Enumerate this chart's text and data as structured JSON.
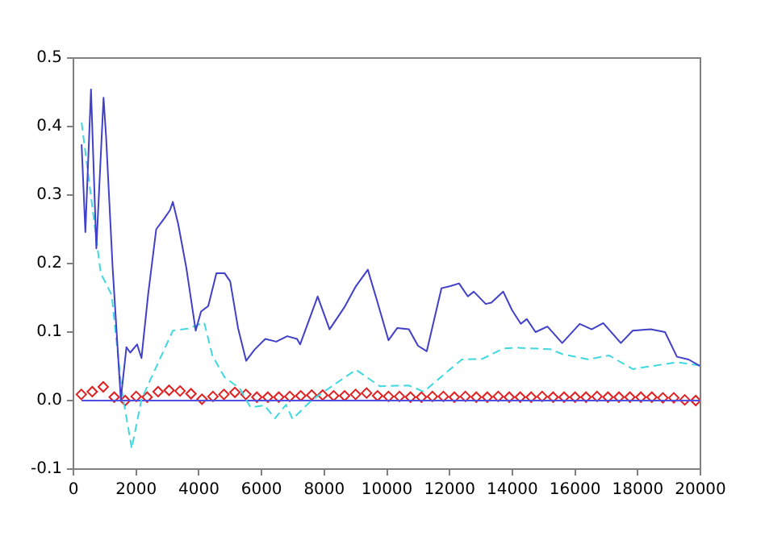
{
  "chart_data": {
    "type": "line",
    "xlim": [
      0,
      20000
    ],
    "xticks": [
      0,
      2000,
      4000,
      6000,
      8000,
      10000,
      12000,
      14000,
      16000,
      18000,
      20000
    ],
    "ylim": [
      -0.1,
      0.5
    ],
    "yticks": [
      -0.1,
      {
        "value": 0,
        "label": "0.0"
      },
      0.1,
      0.2,
      0.3,
      0.4,
      0.5
    ],
    "grid": false,
    "legend": false,
    "series": [
      {
        "color": "#4040c8",
        "marker": "none",
        "line_style": "solid",
        "x": [
          260,
          380,
          560,
          730,
          960,
          1040,
          1250,
          1510,
          1690,
          1810,
          2030,
          2170,
          2380,
          2640,
          2900,
          3080,
          3170,
          3340,
          3600,
          3900,
          4070,
          4300,
          4560,
          4820,
          5000,
          5250,
          5510,
          5770,
          6120,
          6470,
          6820,
          7130,
          7230,
          7790,
          8170,
          8640,
          9010,
          9390,
          9670,
          10050,
          10330,
          10700,
          10990,
          11270,
          11740,
          12020,
          12300,
          12580,
          12770,
          13150,
          13330,
          13710,
          13990,
          14270,
          14460,
          14740,
          15120,
          15590,
          16150,
          16530,
          16900,
          17460,
          17840,
          18410,
          18870,
          19250,
          19620,
          20000
        ],
        "values": [
          0.374,
          0.246,
          0.454,
          0.222,
          0.442,
          0.386,
          0.194,
          0.002,
          0.078,
          0.07,
          0.082,
          0.062,
          0.154,
          0.25,
          0.266,
          0.278,
          0.29,
          0.258,
          0.194,
          0.102,
          0.13,
          0.138,
          0.186,
          0.186,
          0.174,
          0.106,
          0.058,
          0.074,
          0.09,
          0.086,
          0.094,
          0.09,
          0.082,
          0.152,
          0.104,
          0.136,
          0.167,
          0.191,
          0.148,
          0.088,
          0.106,
          0.104,
          0.08,
          0.072,
          0.164,
          0.167,
          0.171,
          0.152,
          0.159,
          0.141,
          0.143,
          0.159,
          0.132,
          0.112,
          0.119,
          0.1,
          0.108,
          0.084,
          0.112,
          0.104,
          0.113,
          0.084,
          0.102,
          0.104,
          0.1,
          0.064,
          0.06,
          0.05
        ]
      },
      {
        "color": "#40d8e0",
        "marker": "none",
        "line_style": "dashed",
        "x": [
          260,
          870,
          1220,
          1530,
          1860,
          2170,
          2610,
          3170,
          3650,
          4170,
          4430,
          4820,
          5300,
          5650,
          6090,
          6430,
          6780,
          6990,
          7610,
          9010,
          9770,
          10700,
          11170,
          12390,
          13050,
          13710,
          14180,
          15210,
          15590,
          16430,
          17080,
          17840,
          18410,
          19250,
          20000
        ],
        "values": [
          0.406,
          0.186,
          0.154,
          0.018,
          -0.07,
          0.002,
          0.046,
          0.102,
          0.105,
          0.114,
          0.066,
          0.034,
          0.018,
          -0.01,
          -0.007,
          -0.026,
          -0.006,
          -0.027,
          0.001,
          0.045,
          0.021,
          0.022,
          0.013,
          0.06,
          0.061,
          0.076,
          0.077,
          0.075,
          0.068,
          0.06,
          0.066,
          0.046,
          0.05,
          0.056,
          0.051
        ]
      },
      {
        "color": "#5050e0",
        "marker": "none",
        "line_style": "solid",
        "x": [
          260,
          20000
        ],
        "values": [
          0,
          0
        ]
      },
      {
        "color": "#e02020",
        "type": "scatter",
        "marker": "diamond",
        "x": [
          250,
          600,
          950,
          1300,
          1650,
          2000,
          2350,
          2700,
          3050,
          3400,
          3750,
          4100,
          4450,
          4800,
          5150,
          5500,
          5850,
          6200,
          6550,
          6900,
          7250,
          7600,
          7950,
          8300,
          8650,
          9000,
          9350,
          9700,
          10050,
          10400,
          10750,
          11100,
          11450,
          11800,
          12150,
          12500,
          12850,
          13200,
          13550,
          13900,
          14250,
          14600,
          14950,
          15300,
          15650,
          16000,
          16350,
          16700,
          17050,
          17400,
          17750,
          18100,
          18450,
          18800,
          19150,
          19500,
          19850
        ],
        "values": [
          0.009,
          0.013,
          0.02,
          0.005,
          0.0,
          0.006,
          0.005,
          0.013,
          0.015,
          0.014,
          0.01,
          0.002,
          0.006,
          0.009,
          0.012,
          0.009,
          0.005,
          0.005,
          0.005,
          0.006,
          0.007,
          0.008,
          0.008,
          0.007,
          0.007,
          0.009,
          0.011,
          0.007,
          0.006,
          0.006,
          0.005,
          0.005,
          0.006,
          0.006,
          0.005,
          0.006,
          0.005,
          0.005,
          0.006,
          0.005,
          0.005,
          0.005,
          0.006,
          0.005,
          0.005,
          0.005,
          0.005,
          0.006,
          0.005,
          0.005,
          0.005,
          0.005,
          0.005,
          0.004,
          0.004,
          0.001,
          0.0
        ]
      }
    ]
  }
}
